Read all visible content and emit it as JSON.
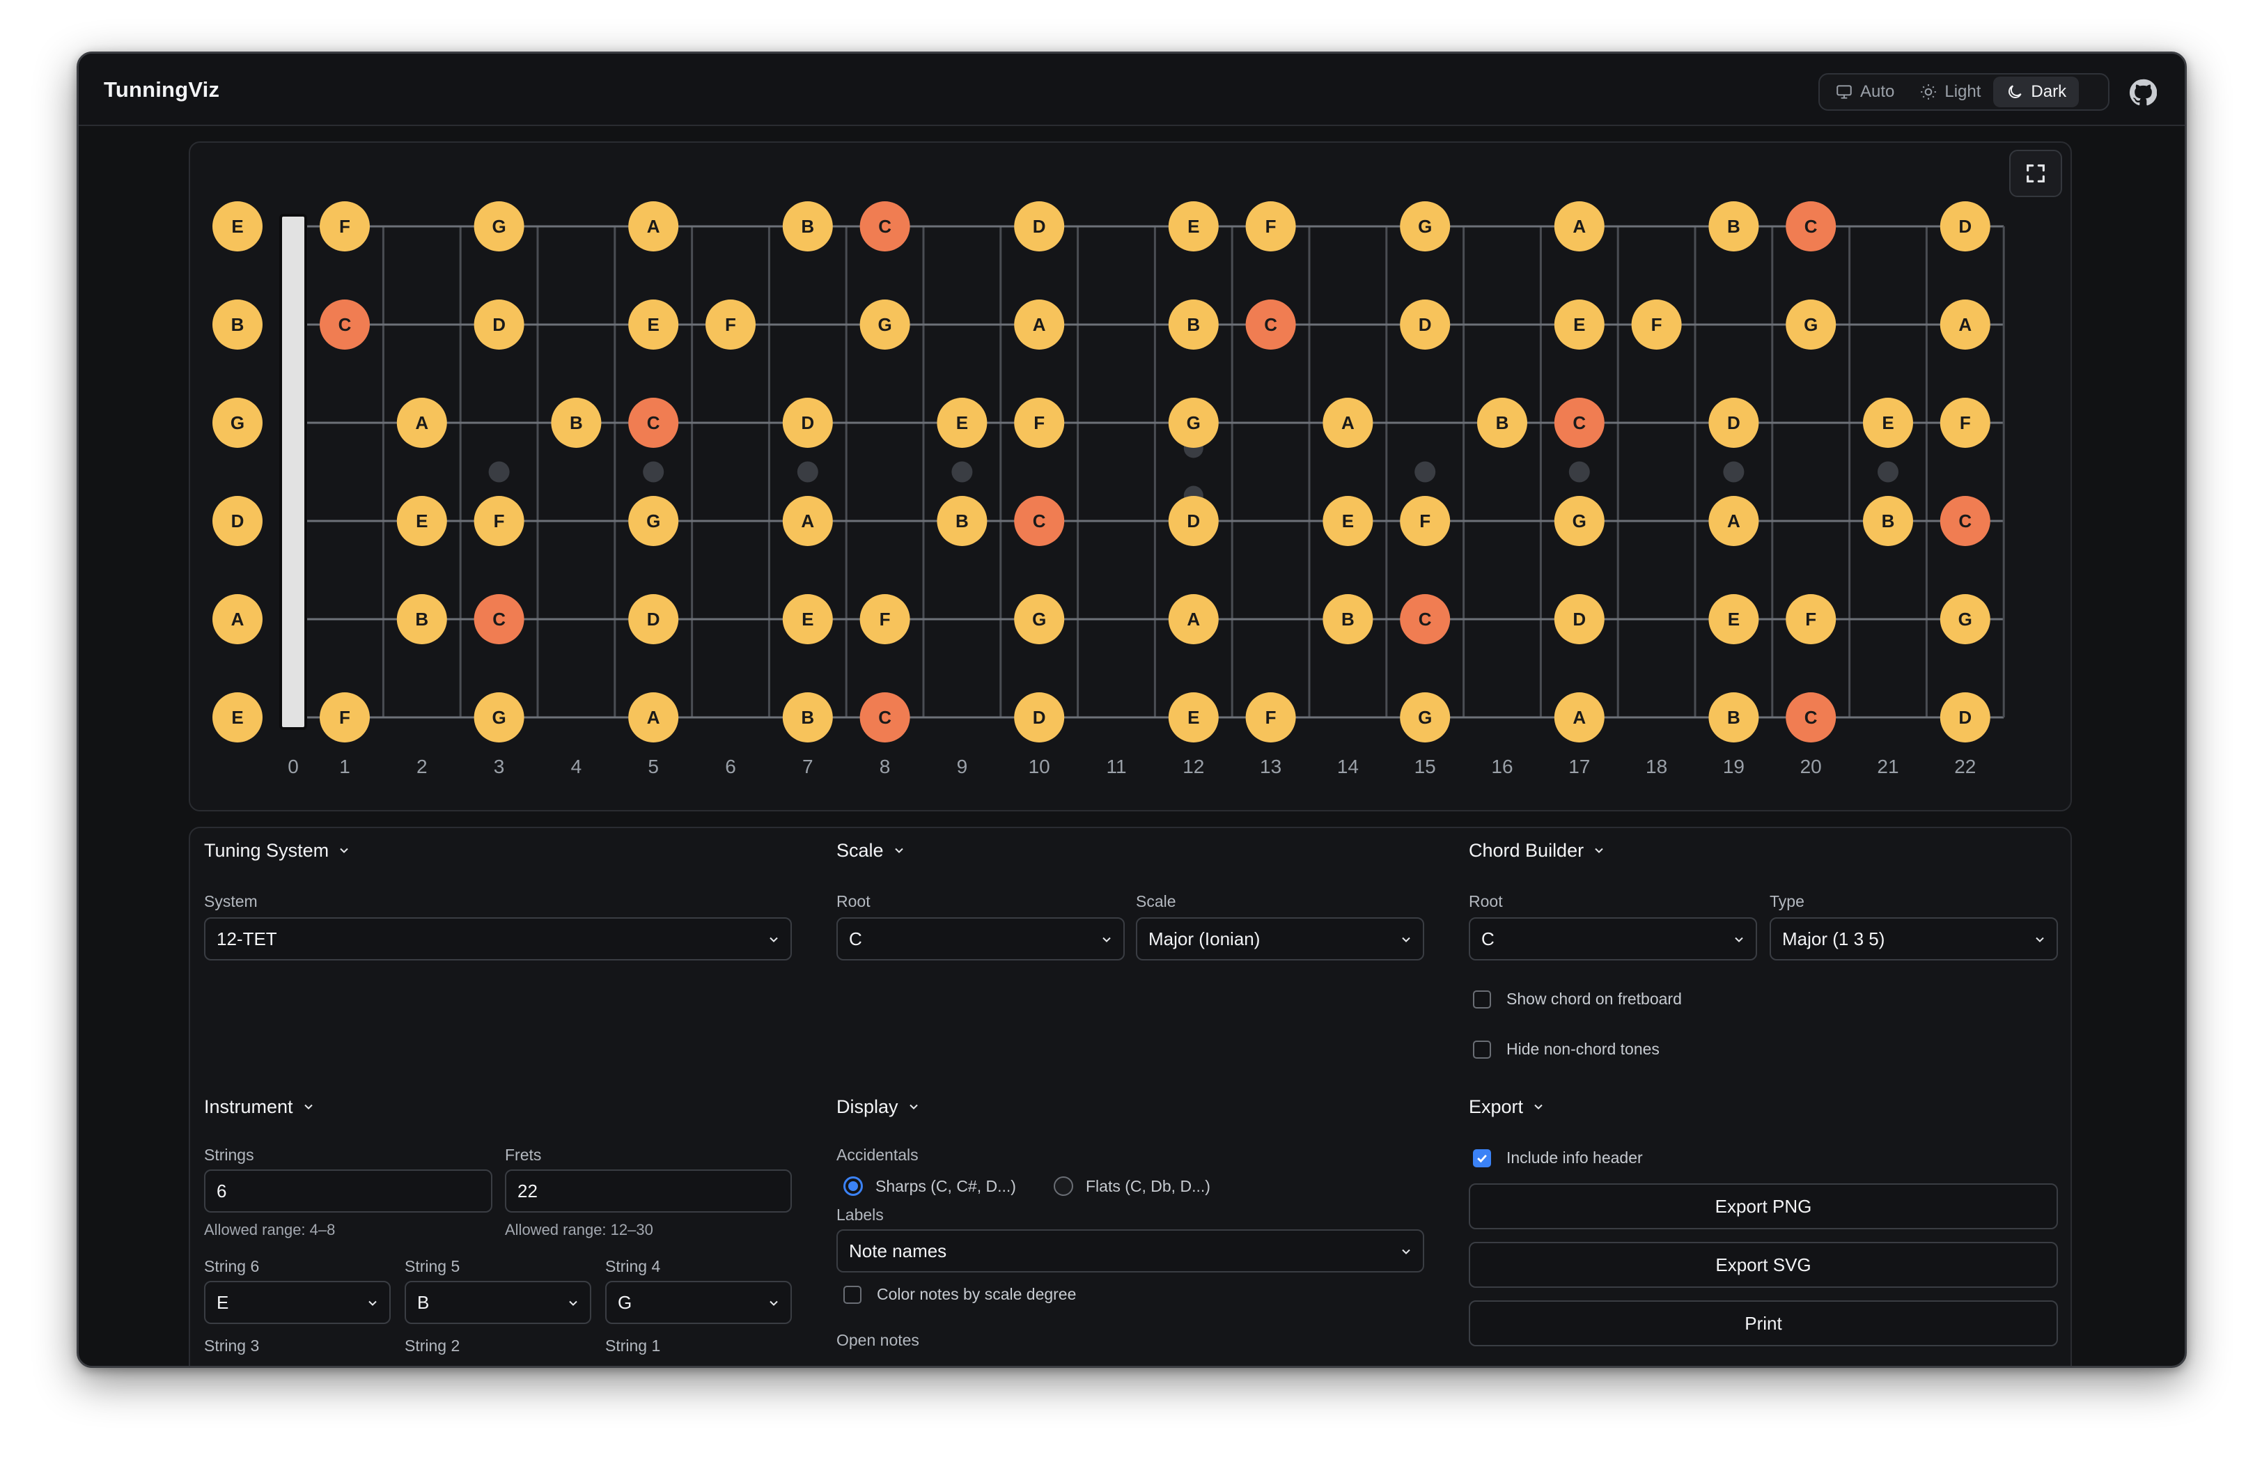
{
  "app": {
    "title": "TunningViz"
  },
  "theme": {
    "options": [
      "Auto",
      "Light",
      "Dark"
    ],
    "selected": "Dark",
    "icons": [
      "monitor-icon",
      "sun-icon",
      "moon-icon"
    ]
  },
  "header": {
    "github_icon": "github-icon"
  },
  "fretboard": {
    "frets": 22,
    "fret_numbers": [
      "0",
      "1",
      "2",
      "3",
      "4",
      "5",
      "6",
      "7",
      "8",
      "9",
      "10",
      "11",
      "12",
      "13",
      "14",
      "15",
      "16",
      "17",
      "18",
      "19",
      "20",
      "21",
      "22"
    ],
    "strings_top_to_bottom": [
      {
        "open": "E",
        "notes": [
          {
            "fret": 1,
            "note": "F"
          },
          {
            "fret": 3,
            "note": "G"
          },
          {
            "fret": 5,
            "note": "A"
          },
          {
            "fret": 7,
            "note": "B"
          },
          {
            "fret": 8,
            "note": "C"
          },
          {
            "fret": 10,
            "note": "D"
          },
          {
            "fret": 12,
            "note": "E"
          },
          {
            "fret": 13,
            "note": "F"
          },
          {
            "fret": 15,
            "note": "G"
          },
          {
            "fret": 17,
            "note": "A"
          },
          {
            "fret": 19,
            "note": "B"
          },
          {
            "fret": 20,
            "note": "C"
          },
          {
            "fret": 22,
            "note": "D"
          }
        ]
      },
      {
        "open": "B",
        "notes": [
          {
            "fret": 1,
            "note": "C"
          },
          {
            "fret": 3,
            "note": "D"
          },
          {
            "fret": 5,
            "note": "E"
          },
          {
            "fret": 6,
            "note": "F"
          },
          {
            "fret": 8,
            "note": "G"
          },
          {
            "fret": 10,
            "note": "A"
          },
          {
            "fret": 12,
            "note": "B"
          },
          {
            "fret": 13,
            "note": "C"
          },
          {
            "fret": 15,
            "note": "D"
          },
          {
            "fret": 17,
            "note": "E"
          },
          {
            "fret": 18,
            "note": "F"
          },
          {
            "fret": 20,
            "note": "G"
          },
          {
            "fret": 22,
            "note": "A"
          }
        ]
      },
      {
        "open": "G",
        "notes": [
          {
            "fret": 2,
            "note": "A"
          },
          {
            "fret": 4,
            "note": "B"
          },
          {
            "fret": 5,
            "note": "C"
          },
          {
            "fret": 7,
            "note": "D"
          },
          {
            "fret": 9,
            "note": "E"
          },
          {
            "fret": 10,
            "note": "F"
          },
          {
            "fret": 12,
            "note": "G"
          },
          {
            "fret": 14,
            "note": "A"
          },
          {
            "fret": 16,
            "note": "B"
          },
          {
            "fret": 17,
            "note": "C"
          },
          {
            "fret": 19,
            "note": "D"
          },
          {
            "fret": 21,
            "note": "E"
          },
          {
            "fret": 22,
            "note": "F"
          }
        ]
      },
      {
        "open": "D",
        "notes": [
          {
            "fret": 2,
            "note": "E"
          },
          {
            "fret": 3,
            "note": "F"
          },
          {
            "fret": 5,
            "note": "G"
          },
          {
            "fret": 7,
            "note": "A"
          },
          {
            "fret": 9,
            "note": "B"
          },
          {
            "fret": 10,
            "note": "C"
          },
          {
            "fret": 12,
            "note": "D"
          },
          {
            "fret": 14,
            "note": "E"
          },
          {
            "fret": 15,
            "note": "F"
          },
          {
            "fret": 17,
            "note": "G"
          },
          {
            "fret": 19,
            "note": "A"
          },
          {
            "fret": 21,
            "note": "B"
          },
          {
            "fret": 22,
            "note": "C"
          }
        ]
      },
      {
        "open": "A",
        "notes": [
          {
            "fret": 2,
            "note": "B"
          },
          {
            "fret": 3,
            "note": "C"
          },
          {
            "fret": 5,
            "note": "D"
          },
          {
            "fret": 7,
            "note": "E"
          },
          {
            "fret": 8,
            "note": "F"
          },
          {
            "fret": 10,
            "note": "G"
          },
          {
            "fret": 12,
            "note": "A"
          },
          {
            "fret": 14,
            "note": "B"
          },
          {
            "fret": 15,
            "note": "C"
          },
          {
            "fret": 17,
            "note": "D"
          },
          {
            "fret": 19,
            "note": "E"
          },
          {
            "fret": 20,
            "note": "F"
          },
          {
            "fret": 22,
            "note": "G"
          }
        ]
      },
      {
        "open": "E",
        "notes": [
          {
            "fret": 1,
            "note": "F"
          },
          {
            "fret": 3,
            "note": "G"
          },
          {
            "fret": 5,
            "note": "A"
          },
          {
            "fret": 7,
            "note": "B"
          },
          {
            "fret": 8,
            "note": "C"
          },
          {
            "fret": 10,
            "note": "D"
          },
          {
            "fret": 12,
            "note": "E"
          },
          {
            "fret": 13,
            "note": "F"
          },
          {
            "fret": 15,
            "note": "G"
          },
          {
            "fret": 17,
            "note": "A"
          },
          {
            "fret": 19,
            "note": "B"
          },
          {
            "fret": 20,
            "note": "C"
          },
          {
            "fret": 22,
            "note": "D"
          }
        ]
      }
    ],
    "inlay_frets": [
      3,
      5,
      7,
      9,
      12,
      15,
      17,
      19,
      21
    ],
    "double_inlay_frets": [
      12
    ],
    "root_note": "C",
    "colors": {
      "note": "#f7c35b",
      "root": "#f07d52",
      "note_text": "#1a1a1a",
      "string": "#6d7178",
      "fret": "#4a4d53",
      "nut": "#e2e2e2",
      "inlay": "#3a3d43",
      "fret_number": "#9aa0a8"
    }
  },
  "fullscreen": {
    "icon": "expand-icon"
  },
  "tuning_system": {
    "title": "Tuning System",
    "system_label": "System",
    "system_value": "12-TET"
  },
  "scale": {
    "title": "Scale",
    "root_label": "Root",
    "root_value": "C",
    "scale_label": "Scale",
    "scale_value": "Major (Ionian)"
  },
  "chord_builder": {
    "title": "Chord Builder",
    "root_label": "Root",
    "root_value": "C",
    "type_label": "Type",
    "type_value": "Major (1 3 5)",
    "show_chord": "Show chord on fretboard",
    "show_chord_checked": false,
    "hide_non_chord": "Hide non-chord tones",
    "hide_non_chord_checked": false
  },
  "instrument": {
    "title": "Instrument",
    "strings_label": "Strings",
    "strings_value": "6",
    "strings_hint": "Allowed range: 4–8",
    "frets_label": "Frets",
    "frets_value": "22",
    "frets_hint": "Allowed range: 12–30",
    "string_selects": [
      {
        "label": "String 6",
        "value": "E"
      },
      {
        "label": "String 5",
        "value": "B"
      },
      {
        "label": "String 4",
        "value": "G"
      }
    ],
    "string_labels_next": [
      "String 3",
      "String 2",
      "String 1"
    ]
  },
  "display": {
    "title": "Display",
    "accidentals_label": "Accidentals",
    "sharps": "Sharps (C, C#, D...)",
    "flats": "Flats (C, Db, D...)",
    "accidentals_selected": "sharps",
    "labels_label": "Labels",
    "labels_value": "Note names",
    "color_by_degree": "Color notes by scale degree",
    "color_by_degree_checked": false,
    "open_notes_label": "Open notes"
  },
  "export": {
    "title": "Export",
    "include_header": "Include info header",
    "include_header_checked": true,
    "png": "Export PNG",
    "svg": "Export SVG",
    "print": "Print"
  }
}
